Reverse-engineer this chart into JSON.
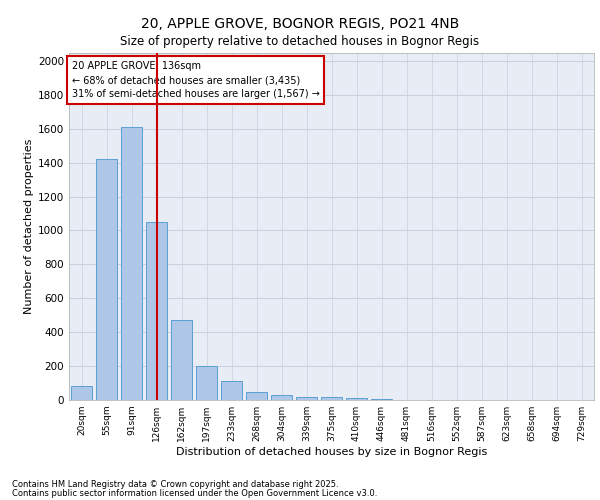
{
  "title_line1": "20, APPLE GROVE, BOGNOR REGIS, PO21 4NB",
  "title_line2": "Size of property relative to detached houses in Bognor Regis",
  "xlabel": "Distribution of detached houses by size in Bognor Regis",
  "ylabel": "Number of detached properties",
  "categories": [
    "20sqm",
    "55sqm",
    "91sqm",
    "126sqm",
    "162sqm",
    "197sqm",
    "233sqm",
    "268sqm",
    "304sqm",
    "339sqm",
    "375sqm",
    "410sqm",
    "446sqm",
    "481sqm",
    "516sqm",
    "552sqm",
    "587sqm",
    "623sqm",
    "658sqm",
    "694sqm",
    "729sqm"
  ],
  "values": [
    80,
    1420,
    1610,
    1050,
    470,
    200,
    110,
    50,
    30,
    20,
    15,
    10,
    5,
    2,
    2,
    0,
    0,
    0,
    0,
    0,
    0
  ],
  "bar_color": "#aec6e8",
  "bar_edge_color": "#5a9fd4",
  "vline_x": 3.0,
  "vline_color": "#cc0000",
  "annotation_box_text": "20 APPLE GROVE: 136sqm\n← 68% of detached houses are smaller (3,435)\n31% of semi-detached houses are larger (1,567) →",
  "annotation_box_color": "#cc0000",
  "annotation_box_fill": "#ffffff",
  "ylim": [
    0,
    2050
  ],
  "yticks": [
    0,
    200,
    400,
    600,
    800,
    1000,
    1200,
    1400,
    1600,
    1800,
    2000
  ],
  "grid_color": "#c8d0de",
  "bg_color": "#e8edf5",
  "footer_line1": "Contains HM Land Registry data © Crown copyright and database right 2025.",
  "footer_line2": "Contains public sector information licensed under the Open Government Licence v3.0."
}
